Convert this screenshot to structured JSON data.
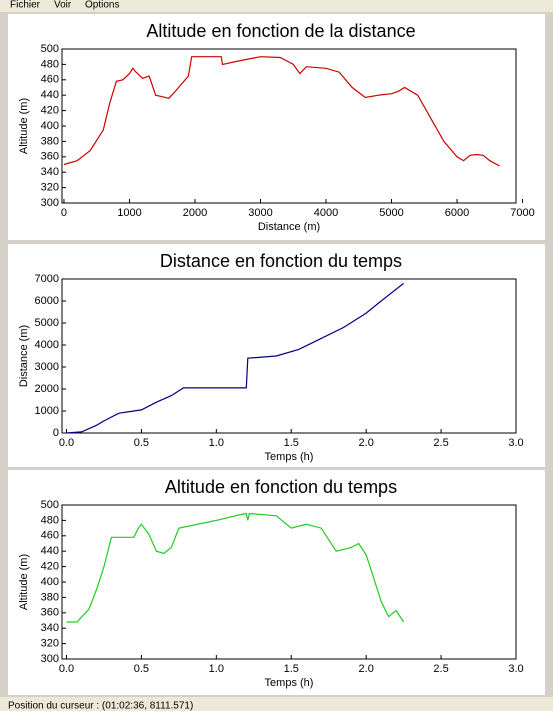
{
  "menu": [
    "Fichier",
    "Voir",
    "Options"
  ],
  "status_bar": "Position du curseur : (01:02:36, 8111.571)",
  "chart_data": [
    {
      "type": "line",
      "title": "Altitude en fonction de la distance",
      "x_label": "Distance (m)",
      "y_label": "Altitude (m)",
      "color": "#cc0000",
      "x": [
        0,
        200,
        400,
        600,
        700,
        800,
        900,
        1000,
        1050,
        1100,
        1200,
        1300,
        1400,
        1500,
        1600,
        1700,
        1800,
        1900,
        1950,
        2000,
        2400,
        2420,
        2700,
        3000,
        3300,
        3500,
        3600,
        3700,
        4000,
        4200,
        4400,
        4600,
        4800,
        5000,
        5100,
        5200,
        5400,
        5600,
        5800,
        6000,
        6100,
        6200,
        6300,
        6400,
        6500,
        6650
      ],
      "y": [
        350,
        355,
        368,
        395,
        430,
        458,
        460,
        468,
        475,
        470,
        462,
        465,
        440,
        438,
        436,
        445,
        455,
        465,
        490,
        490,
        490,
        480,
        485,
        490,
        489,
        480,
        468,
        477,
        475,
        470,
        450,
        437,
        440,
        442,
        445,
        450,
        440,
        410,
        380,
        360,
        355,
        362,
        363,
        362,
        355,
        348
      ],
      "xlim": [
        -30,
        6900
      ],
      "xticks": [
        0,
        1000,
        2000,
        3000,
        4000,
        5000,
        6000,
        7000
      ],
      "ylim": [
        300,
        500
      ],
      "yticks": [
        300,
        320,
        340,
        360,
        380,
        400,
        420,
        440,
        460,
        480,
        500
      ]
    },
    {
      "type": "line",
      "title": "Distance en fonction du temps",
      "x_label": "Temps (h)",
      "y_label": "Distance (m)",
      "color": "#000080",
      "x": [
        0,
        0.1,
        0.2,
        0.25,
        0.35,
        0.45,
        0.5,
        0.6,
        0.7,
        0.78,
        1.2,
        1.21,
        1.4,
        1.55,
        1.7,
        1.85,
        2.0,
        2.1,
        2.25
      ],
      "y": [
        0,
        50,
        350,
        550,
        900,
        1000,
        1050,
        1400,
        1700,
        2050,
        2050,
        3400,
        3500,
        3800,
        4300,
        4800,
        5450,
        6000,
        6800
      ],
      "xlim": [
        -0.03,
        3
      ],
      "xticks": [
        {
          "value": 0,
          "label": "0.0"
        },
        0.5,
        {
          "value": 1,
          "label": "1.0"
        },
        1.5,
        {
          "value": 2,
          "label": "2.0"
        },
        2.5,
        {
          "value": 3,
          "label": "3.0"
        }
      ],
      "ylim": [
        0,
        7000
      ],
      "yticks": [
        0,
        1000,
        2000,
        3000,
        4000,
        5000,
        6000,
        7000
      ]
    },
    {
      "type": "line",
      "title": "Altitude en fonction du temps",
      "x_label": "Temps (h)",
      "y_label": "Altitude (m)",
      "color": "#22cc22",
      "x": [
        0,
        0.07,
        0.15,
        0.2,
        0.25,
        0.3,
        0.45,
        0.48,
        0.5,
        0.55,
        0.6,
        0.65,
        0.7,
        0.75,
        1.0,
        1.15,
        1.2,
        1.21,
        1.22,
        1.4,
        1.5,
        1.6,
        1.7,
        1.8,
        1.9,
        1.95,
        2.0,
        2.05,
        2.1,
        2.15,
        2.2,
        2.25
      ],
      "y": [
        348,
        348,
        365,
        390,
        420,
        458,
        458,
        470,
        475,
        462,
        440,
        437,
        445,
        470,
        480,
        487,
        489,
        480,
        489,
        486,
        470,
        475,
        470,
        440,
        445,
        450,
        435,
        405,
        375,
        355,
        363,
        348
      ],
      "xlim": [
        -0.03,
        3
      ],
      "xticks": [
        {
          "value": 0,
          "label": "0.0"
        },
        0.5,
        {
          "value": 1,
          "label": "1.0"
        },
        1.5,
        {
          "value": 2,
          "label": "2.0"
        },
        2.5,
        {
          "value": 3,
          "label": "3.0"
        }
      ],
      "ylim": [
        300,
        500
      ],
      "yticks": [
        300,
        320,
        340,
        360,
        380,
        400,
        420,
        440,
        460,
        480,
        500
      ]
    }
  ]
}
